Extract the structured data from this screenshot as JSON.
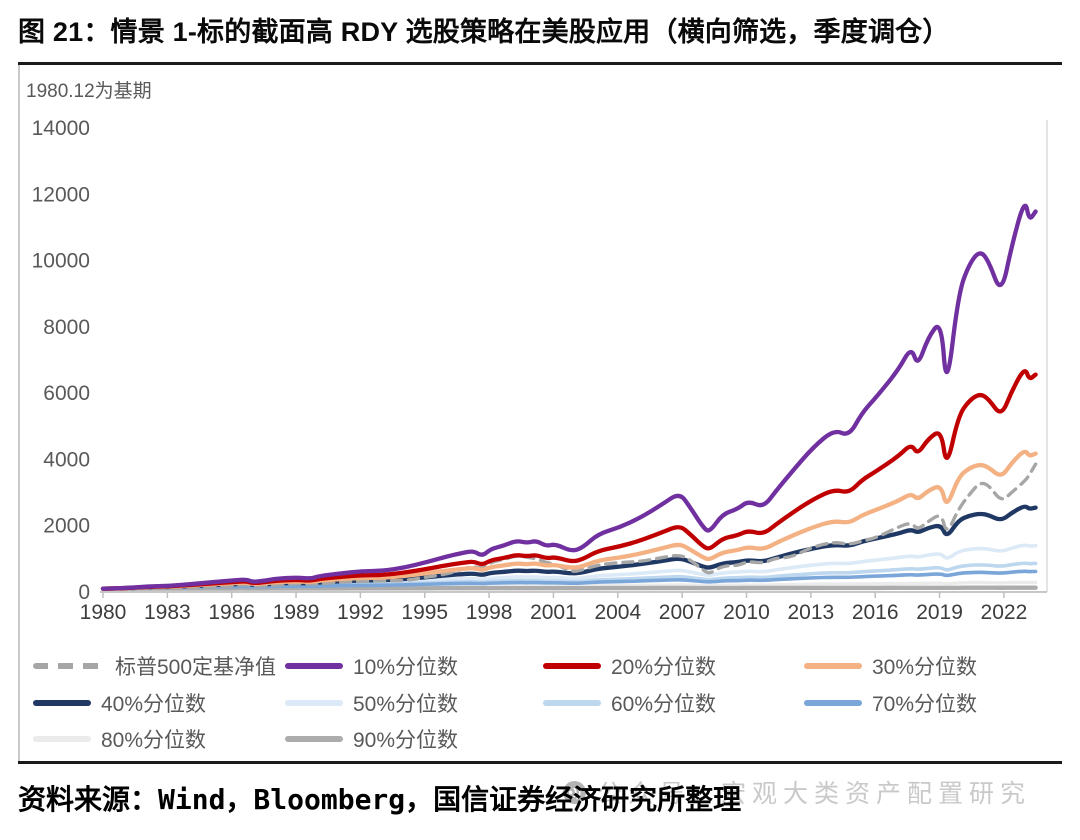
{
  "figure": {
    "title": "图 21：情景 1-标的截面高 RDY 选股策略在美股应用（横向筛选，季度调仓）",
    "base_note": "1980.12为基期",
    "source": "资料来源：Wind，Bloomberg，国信证券经济研究所整理",
    "watermark": "公众号：宏观大类资产配置研究"
  },
  "colors": {
    "rule": "#1a1a1a",
    "axis": "#bfbfbf",
    "tick_label": "#3d3d3d",
    "y_label": "#595959",
    "legend_text": "#595959",
    "watermark_gray": "#c9c9c9",
    "plot_border": "#dedede"
  },
  "chart_data": {
    "type": "line",
    "title": "情景1-标的截面高RDY选股策略在美股应用（横向筛选，季度调仓）",
    "subtitle_note": "1980.12为基期",
    "grid": false,
    "legend_position": "bottom",
    "ylim": [
      0,
      14000
    ],
    "xlim": [
      1980.92,
      2024.6
    ],
    "y_ticks": [
      0,
      2000,
      4000,
      6000,
      8000,
      10000,
      12000,
      14000
    ],
    "x_tick_labels": [
      "1980",
      "1983",
      "1986",
      "1989",
      "1992",
      "1995",
      "1998",
      "2001",
      "2004",
      "2007",
      "2010",
      "2013",
      "2016",
      "2019",
      "2022"
    ],
    "x": [
      1980.92,
      1982,
      1983,
      1984,
      1985,
      1986,
      1987,
      1987.6,
      1987.9,
      1988.5,
      1989,
      1990,
      1990.6,
      1991,
      1992,
      1993,
      1994,
      1995,
      1996,
      1997,
      1997.7,
      1998.2,
      1998.6,
      1999,
      1999.6,
      2000.2,
      2000.7,
      2001.1,
      2001.6,
      2002,
      2002.8,
      2003.3,
      2004,
      2005,
      2006,
      2007,
      2007.8,
      2008.3,
      2008.9,
      2009.2,
      2009.8,
      2010.5,
      2011,
      2011.7,
      2012.3,
      2013,
      2014,
      2015,
      2015.7,
      2016.3,
      2017,
      2018,
      2018.6,
      2018.9,
      2019.4,
      2020.0,
      2020.25,
      2020.8,
      2021.3,
      2021.8,
      2022.2,
      2022.8,
      2023.3,
      2023.9,
      2024.1,
      2024.4
    ],
    "series": [
      {
        "name": "标普500定基净值",
        "color": "#a6a6a6",
        "dash": true,
        "width": 3.4,
        "values": [
          100,
          88,
          104,
          121,
          123,
          155,
          178,
          234,
          169,
          193,
          204,
          260,
          243,
          243,
          307,
          320,
          343,
          337,
          453,
          545,
          698,
          771,
          703,
          903,
          978,
          1101,
          1051,
          1004,
          882,
          844,
          599,
          676,
          817,
          891,
          917,
          1042,
          1122,
          970,
          662,
          540,
          794,
          794,
          925,
          867,
          1029,
          1048,
          1358,
          1513,
          1433,
          1529,
          1646,
          1965,
          2095,
          1874,
          2132,
          2375,
          1727,
          2499,
          2940,
          3308,
          3234,
          2720,
          3014,
          3352,
          3528,
          3859
        ]
      },
      {
        "name": "10%分位数",
        "color": "#7030a0",
        "dash": false,
        "width": 4.3,
        "values": [
          100,
          120,
          165,
          185,
          235,
          295,
          350,
          380,
          300,
          345,
          405,
          440,
          400,
          480,
          560,
          630,
          640,
          740,
          900,
          1080,
          1180,
          1240,
          1080,
          1300,
          1400,
          1550,
          1480,
          1550,
          1380,
          1450,
          1220,
          1350,
          1750,
          1950,
          2250,
          2650,
          3000,
          2550,
          1950,
          1800,
          2350,
          2500,
          2750,
          2550,
          3050,
          3600,
          4350,
          4900,
          4700,
          5400,
          5900,
          6700,
          7400,
          6800,
          7700,
          8200,
          6000,
          9000,
          9900,
          10300,
          10000,
          8950,
          10500,
          11880,
          11200,
          11480
        ]
      },
      {
        "name": "20%分位数",
        "color": "#c00000",
        "dash": false,
        "width": 4.3,
        "values": [
          100,
          117,
          156,
          172,
          212,
          260,
          302,
          325,
          264,
          298,
          343,
          369,
          339,
          399,
          457,
          507,
          514,
          584,
          695,
          816,
          882,
          922,
          816,
          961,
          1025,
          1122,
          1077,
          1122,
          1012,
          1057,
          908,
          994,
          1247,
          1371,
          1558,
          1802,
          2012,
          1742,
          1371,
          1278,
          1618,
          1708,
          1856,
          1742,
          2043,
          2362,
          2791,
          3099,
          2986,
          3382,
          3657,
          4095,
          4468,
          4150,
          4628,
          4894,
          3709,
          5314,
          5777,
          5986,
          5828,
          5286,
          6088,
          6784,
          6400,
          6560
        ]
      },
      {
        "name": "30%分位数",
        "color": "#f4b183",
        "dash": false,
        "width": 4.3,
        "values": [
          100,
          115,
          148,
          162,
          196,
          235,
          268,
          286,
          238,
          265,
          301,
          321,
          298,
          344,
          389,
          427,
          432,
          484,
          566,
          652,
          699,
          727,
          652,
          755,
          800,
          866,
          834,
          866,
          792,
          823,
          718,
          777,
          953,
          1037,
          1162,
          1322,
          1457,
          1283,
          1037,
          973,
          1202,
          1262,
          1360,
          1283,
          1477,
          1686,
          1955,
          2147,
          2077,
          2317,
          2488,
          2750,
          2974,
          2782,
          3068,
          3224,
          2520,
          3467,
          3737,
          3856,
          3765,
          3447,
          3914,
          4290,
          4095,
          4177
        ]
      },
      {
        "name": "40%分位数",
        "color": "#1f3864",
        "dash": false,
        "width": 4.3,
        "values": [
          100,
          113,
          141,
          152,
          179,
          210,
          235,
          249,
          212,
          233,
          260,
          275,
          258,
          292,
          325,
          352,
          355,
          392,
          448,
          508,
          540,
          558,
          508,
          577,
          607,
          650,
          629,
          650,
          601,
          621,
          552,
          592,
          707,
          762,
          841,
          939,
          1022,
          915,
          762,
          721,
          866,
          903,
          964,
          915,
          1034,
          1158,
          1316,
          1427,
          1386,
          1524,
          1620,
          1766,
          1889,
          1784,
          1941,
          2026,
          1638,
          2159,
          2304,
          2367,
          2319,
          2148,
          2398,
          2609,
          2505,
          2548
        ]
      },
      {
        "name": "50%分位数",
        "color": "#dce9f6",
        "dash": false,
        "width": 3.6,
        "values": [
          100,
          111,
          132,
          141,
          161,
          182,
          201,
          210,
          184,
          199,
          218,
          228,
          216,
          239,
          261,
          279,
          281,
          304,
          339,
          376,
          395,
          406,
          376,
          417,
          434,
          459,
          447,
          459,
          430,
          442,
          402,
          425,
          491,
          522,
          565,
          618,
          663,
          605,
          522,
          499,
          580,
          600,
          632,
          605,
          669,
          733,
          815,
          871,
          851,
          919,
          966,
          1037,
          1095,
          1045,
          1120,
          1160,
          975,
          1222,
          1288,
          1317,
          1295,
          1216,
          1331,
          1424,
          1378,
          1397
        ]
      },
      {
        "name": "60%分位数",
        "color": "#bdd7ee",
        "dash": false,
        "width": 3.6,
        "values": [
          100,
          109,
          126,
          132,
          147,
          163,
          177,
          183,
          165,
          175,
          189,
          196,
          188,
          204,
          219,
          231,
          232,
          248,
          271,
          295,
          307,
          314,
          295,
          320,
          331,
          347,
          340,
          347,
          329,
          337,
          311,
          326,
          367,
          385,
          411,
          443,
          468,
          435,
          385,
          371,
          419,
          431,
          450,
          435,
          472,
          509,
          554,
          585,
          574,
          612,
          637,
          675,
          706,
          680,
          719,
          740,
          641,
          772,
          806,
          821,
          810,
          770,
          828,
          876,
          852,
          862
        ]
      },
      {
        "name": "70%分位数",
        "color": "#7aa6da",
        "dash": false,
        "width": 3.6,
        "values": [
          100,
          107,
          121,
          127,
          139,
          152,
          162,
          167,
          153,
          161,
          171,
          177,
          171,
          183,
          194,
          203,
          204,
          216,
          233,
          250,
          259,
          264,
          250,
          268,
          276,
          287,
          282,
          287,
          275,
          280,
          262,
          272,
          301,
          314,
          332,
          353,
          371,
          348,
          314,
          304,
          337,
          345,
          358,
          348,
          373,
          397,
          427,
          447,
          440,
          464,
          481,
          505,
          524,
          508,
          532,
          546,
          484,
          565,
          586,
          595,
          589,
          564,
          600,
          629,
          615,
          620
        ]
      },
      {
        "name": "80%分位数",
        "color": "#ebebeb",
        "dash": false,
        "width": 3.4,
        "values": [
          100,
          104,
          112,
          115,
          121,
          128,
          133,
          135,
          128,
          132,
          137,
          140,
          137,
          142,
          147,
          151,
          152,
          157,
          164,
          171,
          174,
          176,
          171,
          178,
          181,
          185,
          183,
          185,
          181,
          183,
          176,
          180,
          190,
          195,
          202,
          209,
          215,
          207,
          195,
          192,
          204,
          206,
          211,
          207,
          216,
          224,
          234,
          240,
          238,
          245,
          250,
          258,
          263,
          259,
          266,
          270,
          251,
          275,
          281,
          284,
          282,
          275,
          285,
          293,
          289,
          291
        ]
      },
      {
        "name": "90%分位数",
        "color": "#acacac",
        "dash": false,
        "width": 4.4,
        "values": [
          100,
          101,
          103,
          103,
          105,
          106,
          107,
          108,
          106,
          107,
          108,
          109,
          108,
          109,
          110,
          111,
          111,
          112,
          113,
          114,
          115,
          115,
          114,
          115,
          116,
          116,
          116,
          116,
          116,
          116,
          115,
          115,
          117,
          118,
          119,
          120,
          121,
          120,
          118,
          117,
          119,
          119,
          120,
          120,
          121,
          122,
          123,
          124,
          124,
          125,
          125,
          126,
          127,
          126,
          127,
          127,
          125,
          128,
          129,
          129,
          129,
          128,
          129,
          130,
          130,
          130
        ]
      }
    ]
  }
}
